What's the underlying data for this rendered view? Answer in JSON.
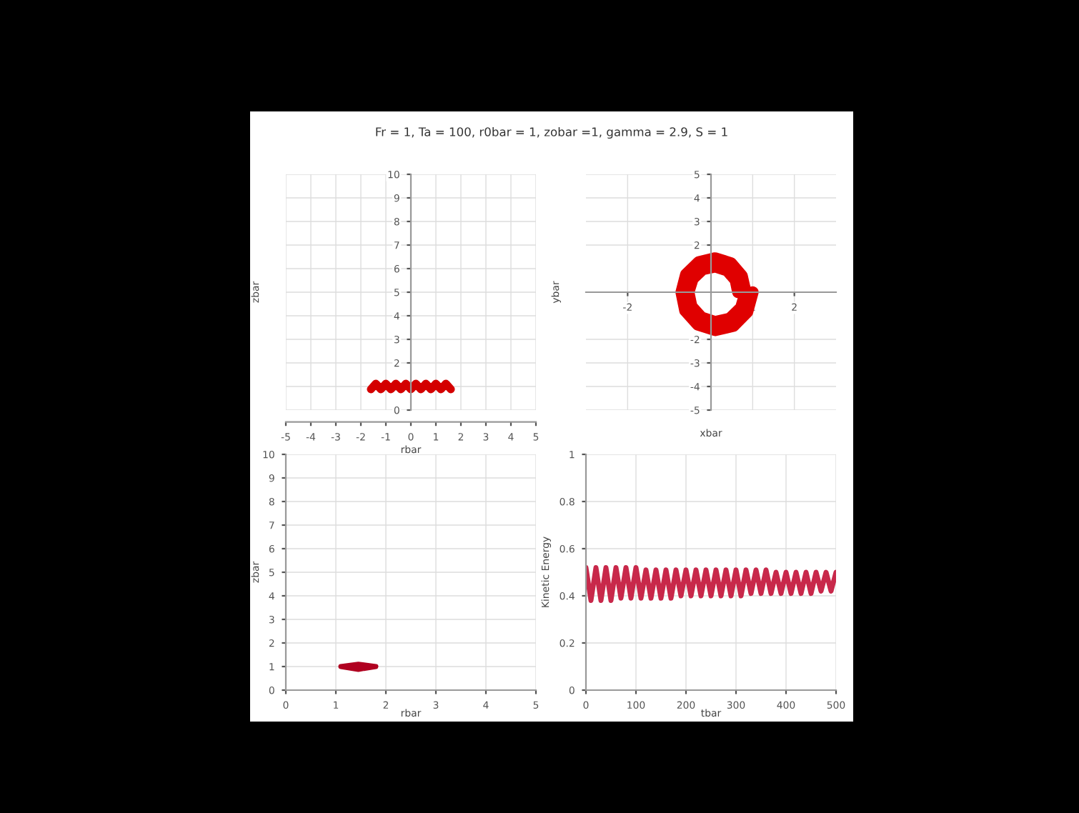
{
  "chart_data": [
    {
      "type": "line",
      "title": "Fr = 1, Ta = 100, r0bar = 1, zobar =1, gamma = 2.9, S = 1",
      "xlabel": "rbar",
      "ylabel": "zbar",
      "xlim": [
        -5,
        5
      ],
      "ylim": [
        0,
        10
      ],
      "xticks": [
        -5,
        -4,
        -3,
        -2,
        -1,
        0,
        1,
        2,
        3,
        4,
        5
      ],
      "yticks": [
        0,
        1,
        2,
        3,
        4,
        5,
        6,
        7,
        8,
        9,
        10
      ],
      "grid": true,
      "marker": "none",
      "series": [
        {
          "color": "#d40000",
          "x": [
            -1.6,
            -1.4,
            -1.2,
            -1.0,
            -0.8,
            -0.6,
            -0.4,
            -0.2,
            0.0,
            0.2,
            0.4,
            0.6,
            0.8,
            1.0,
            1.2,
            1.4,
            1.6
          ],
          "values": [
            0.88,
            1.12,
            0.88,
            1.12,
            0.88,
            1.12,
            0.88,
            1.12,
            0.88,
            1.12,
            0.88,
            1.12,
            0.88,
            1.12,
            0.88,
            1.12,
            0.88
          ]
        }
      ]
    },
    {
      "type": "line",
      "xlabel": "xbar",
      "ylabel": "ybar",
      "xlim": [
        -3,
        3
      ],
      "ylim": [
        -5,
        5
      ],
      "xticks": [
        -2,
        1,
        2
      ],
      "yticks": [
        -5,
        -4,
        -3,
        -2,
        2,
        3,
        4,
        5
      ],
      "grid": true,
      "marker": "none",
      "series": [
        {
          "color": "#e00000",
          "x": [
            0.65,
            0.59,
            0.39,
            0.1,
            -0.2,
            -0.44,
            -0.54,
            -0.47,
            -0.23,
            0.1,
            0.45,
            0.72,
            0.83,
            0.74,
            0.48,
            0.1,
            -0.29,
            -0.6,
            -0.71,
            -0.62,
            -0.32,
            0.1,
            0.54,
            0.87,
            1.0
          ],
          "values": [
            0,
            0.51,
            0.92,
            1.09,
            0.97,
            0.57,
            0,
            -0.6,
            -1.07,
            -1.26,
            -1.12,
            -0.66,
            0,
            0.69,
            1.23,
            1.44,
            1.28,
            0.75,
            0,
            -0.78,
            -1.37,
            -1.61,
            -1.43,
            -0.84,
            0
          ]
        }
      ]
    },
    {
      "type": "line",
      "xlabel": "rbar",
      "ylabel": "zbar",
      "xlim": [
        0,
        5
      ],
      "ylim": [
        0,
        10
      ],
      "xticks": [
        0,
        1,
        2,
        3,
        4,
        5
      ],
      "yticks": [
        0,
        1,
        2,
        3,
        4,
        5,
        6,
        7,
        8,
        9,
        10
      ],
      "grid": true,
      "marker": "none",
      "series": [
        {
          "color": "#b00020",
          "x": [
            1.1,
            1.45,
            1.8,
            1.45,
            1.1,
            1.45,
            1.75,
            1.45,
            1.15
          ],
          "values": [
            1.0,
            1.1,
            1.0,
            0.88,
            1.0,
            1.05,
            1.0,
            0.92,
            1.0
          ]
        }
      ]
    },
    {
      "type": "line",
      "xlabel": "tbar",
      "ylabel": "Kinetic Energy",
      "xlim": [
        0,
        500
      ],
      "ylim": [
        0,
        1
      ],
      "xticks": [
        0,
        100,
        200,
        300,
        400,
        500
      ],
      "yticks": [
        0,
        0.2,
        0.4,
        0.6,
        0.8,
        1
      ],
      "grid": true,
      "marker": "none",
      "series": [
        {
          "color": "#c8284a",
          "x": [
            0,
            10,
            20,
            30,
            40,
            50,
            60,
            70,
            80,
            90,
            100,
            110,
            120,
            130,
            140,
            150,
            160,
            170,
            180,
            190,
            200,
            210,
            220,
            230,
            240,
            250,
            260,
            270,
            280,
            290,
            300,
            310,
            320,
            330,
            340,
            350,
            360,
            370,
            380,
            390,
            400,
            410,
            420,
            430,
            440,
            450,
            460,
            470,
            480,
            490,
            500
          ],
          "values": [
            0.52,
            0.38,
            0.52,
            0.38,
            0.52,
            0.38,
            0.52,
            0.39,
            0.52,
            0.39,
            0.52,
            0.39,
            0.51,
            0.39,
            0.51,
            0.39,
            0.51,
            0.39,
            0.51,
            0.4,
            0.51,
            0.4,
            0.51,
            0.4,
            0.51,
            0.4,
            0.51,
            0.4,
            0.51,
            0.4,
            0.51,
            0.4,
            0.51,
            0.41,
            0.51,
            0.41,
            0.51,
            0.41,
            0.5,
            0.41,
            0.5,
            0.41,
            0.5,
            0.41,
            0.5,
            0.41,
            0.5,
            0.42,
            0.5,
            0.42,
            0.5
          ]
        }
      ]
    }
  ]
}
